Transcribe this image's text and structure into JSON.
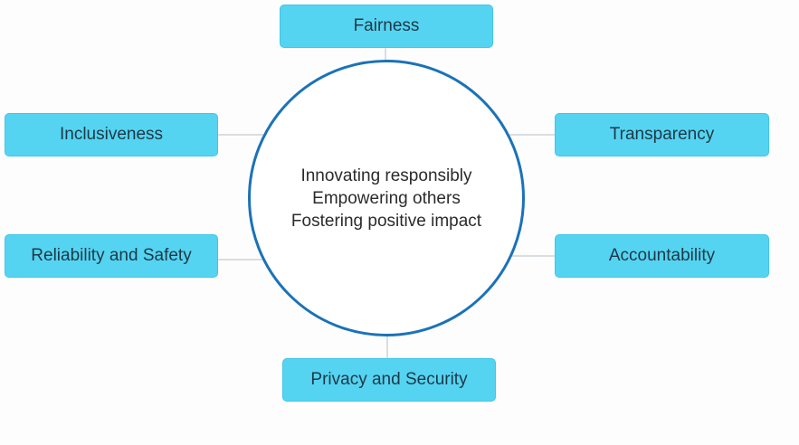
{
  "center": {
    "lines": [
      "Innovating responsibly",
      "Empowering others",
      "Fostering positive impact"
    ]
  },
  "principles": [
    {
      "label": "Fairness"
    },
    {
      "label": "Inclusiveness"
    },
    {
      "label": "Transparency"
    },
    {
      "label": "Reliability and Safety"
    },
    {
      "label": "Accountability"
    },
    {
      "label": "Privacy and Security"
    }
  ],
  "colors": {
    "box_fill": "#55d4f2",
    "circle_stroke": "#1b72b8",
    "connector": "#b9bec3"
  }
}
